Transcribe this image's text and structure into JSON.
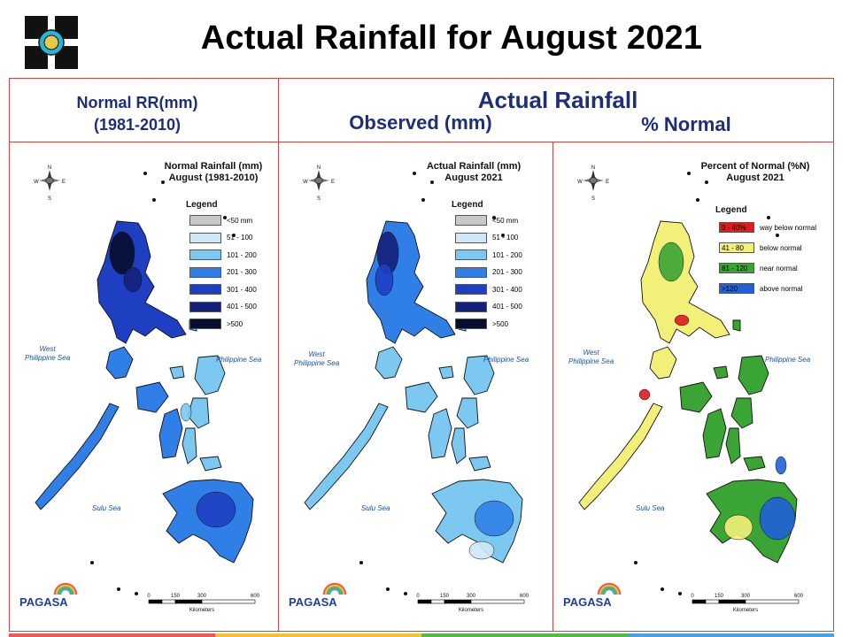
{
  "header": {
    "title": "Actual Rainfall for August 2021",
    "normal_label": "Normal RR(mm)",
    "normal_period": "(1981-2010)",
    "actual_label": "Actual Rainfall",
    "observed_label": "Observed (mm)",
    "percent_label": "% Normal"
  },
  "panels": [
    {
      "title_line1": "Normal Rainfall (mm)",
      "title_line2": "August (1981-2010)",
      "legend_title": "Legend",
      "legend": [
        {
          "label": "<50 mm",
          "color": "#c9c9c9"
        },
        {
          "label": "51 - 100",
          "color": "#cfe8f7"
        },
        {
          "label": "101 - 200",
          "color": "#7cc8f0"
        },
        {
          "label": "201 - 300",
          "color": "#2f7fe6"
        },
        {
          "label": "301 - 400",
          "color": "#1f3fc2"
        },
        {
          "label": "401 - 500",
          "color": "#15207a"
        },
        {
          "label": ">500",
          "color": "#070d2e"
        }
      ],
      "seas": {
        "west": "West\nPhilippine Sea",
        "east": "Philippine Sea",
        "south": "Sulu Sea"
      }
    },
    {
      "title_line1": "Actual Rainfall (mm)",
      "title_line2": "August 2021",
      "legend_title": "Legend",
      "legend": [
        {
          "label": "<50 mm",
          "color": "#c9c9c9"
        },
        {
          "label": "51 - 100",
          "color": "#cfe8f7"
        },
        {
          "label": "101 - 200",
          "color": "#7cc8f0"
        },
        {
          "label": "201 - 300",
          "color": "#2f7fe6"
        },
        {
          "label": "301 - 400",
          "color": "#1f3fc2"
        },
        {
          "label": "401 - 500",
          "color": "#15207a"
        },
        {
          "label": ">500",
          "color": "#070d2e"
        }
      ],
      "seas": {
        "west": "West\nPhilippine Sea",
        "east": "Philippine Sea",
        "south": "Sulu Sea"
      }
    },
    {
      "title_line1": "Percent of Normal (%N)",
      "title_line2": "August 2021",
      "legend_title": "Legend",
      "legend": [
        {
          "swatch": "0 - 40%",
          "label": "way below normal",
          "color": "#e01b1b"
        },
        {
          "swatch": "41 - 80",
          "label": "below normal",
          "color": "#f3f079"
        },
        {
          "swatch": "81 - 120",
          "label": "near normal",
          "color": "#3aa434"
        },
        {
          "swatch": ">120",
          "label": "above normal",
          "color": "#2060d8"
        }
      ],
      "seas": {
        "west": "West\nPhilippine Sea",
        "east": "Philippine Sea",
        "south": "Sulu Sea"
      }
    }
  ],
  "scale": {
    "ticks": [
      "0",
      "150",
      "300",
      "600"
    ],
    "unit": "Kilometers"
  },
  "compass": {
    "n": "N",
    "s": "S",
    "e": "E",
    "w": "W"
  },
  "brand": {
    "name": "PAGASA"
  },
  "colors": {
    "frame": "#c84646",
    "header_text": "#1f2e7a",
    "strip": [
      "#e85a5a",
      "#f0c23a",
      "#58b848",
      "#4aa0e0"
    ]
  }
}
